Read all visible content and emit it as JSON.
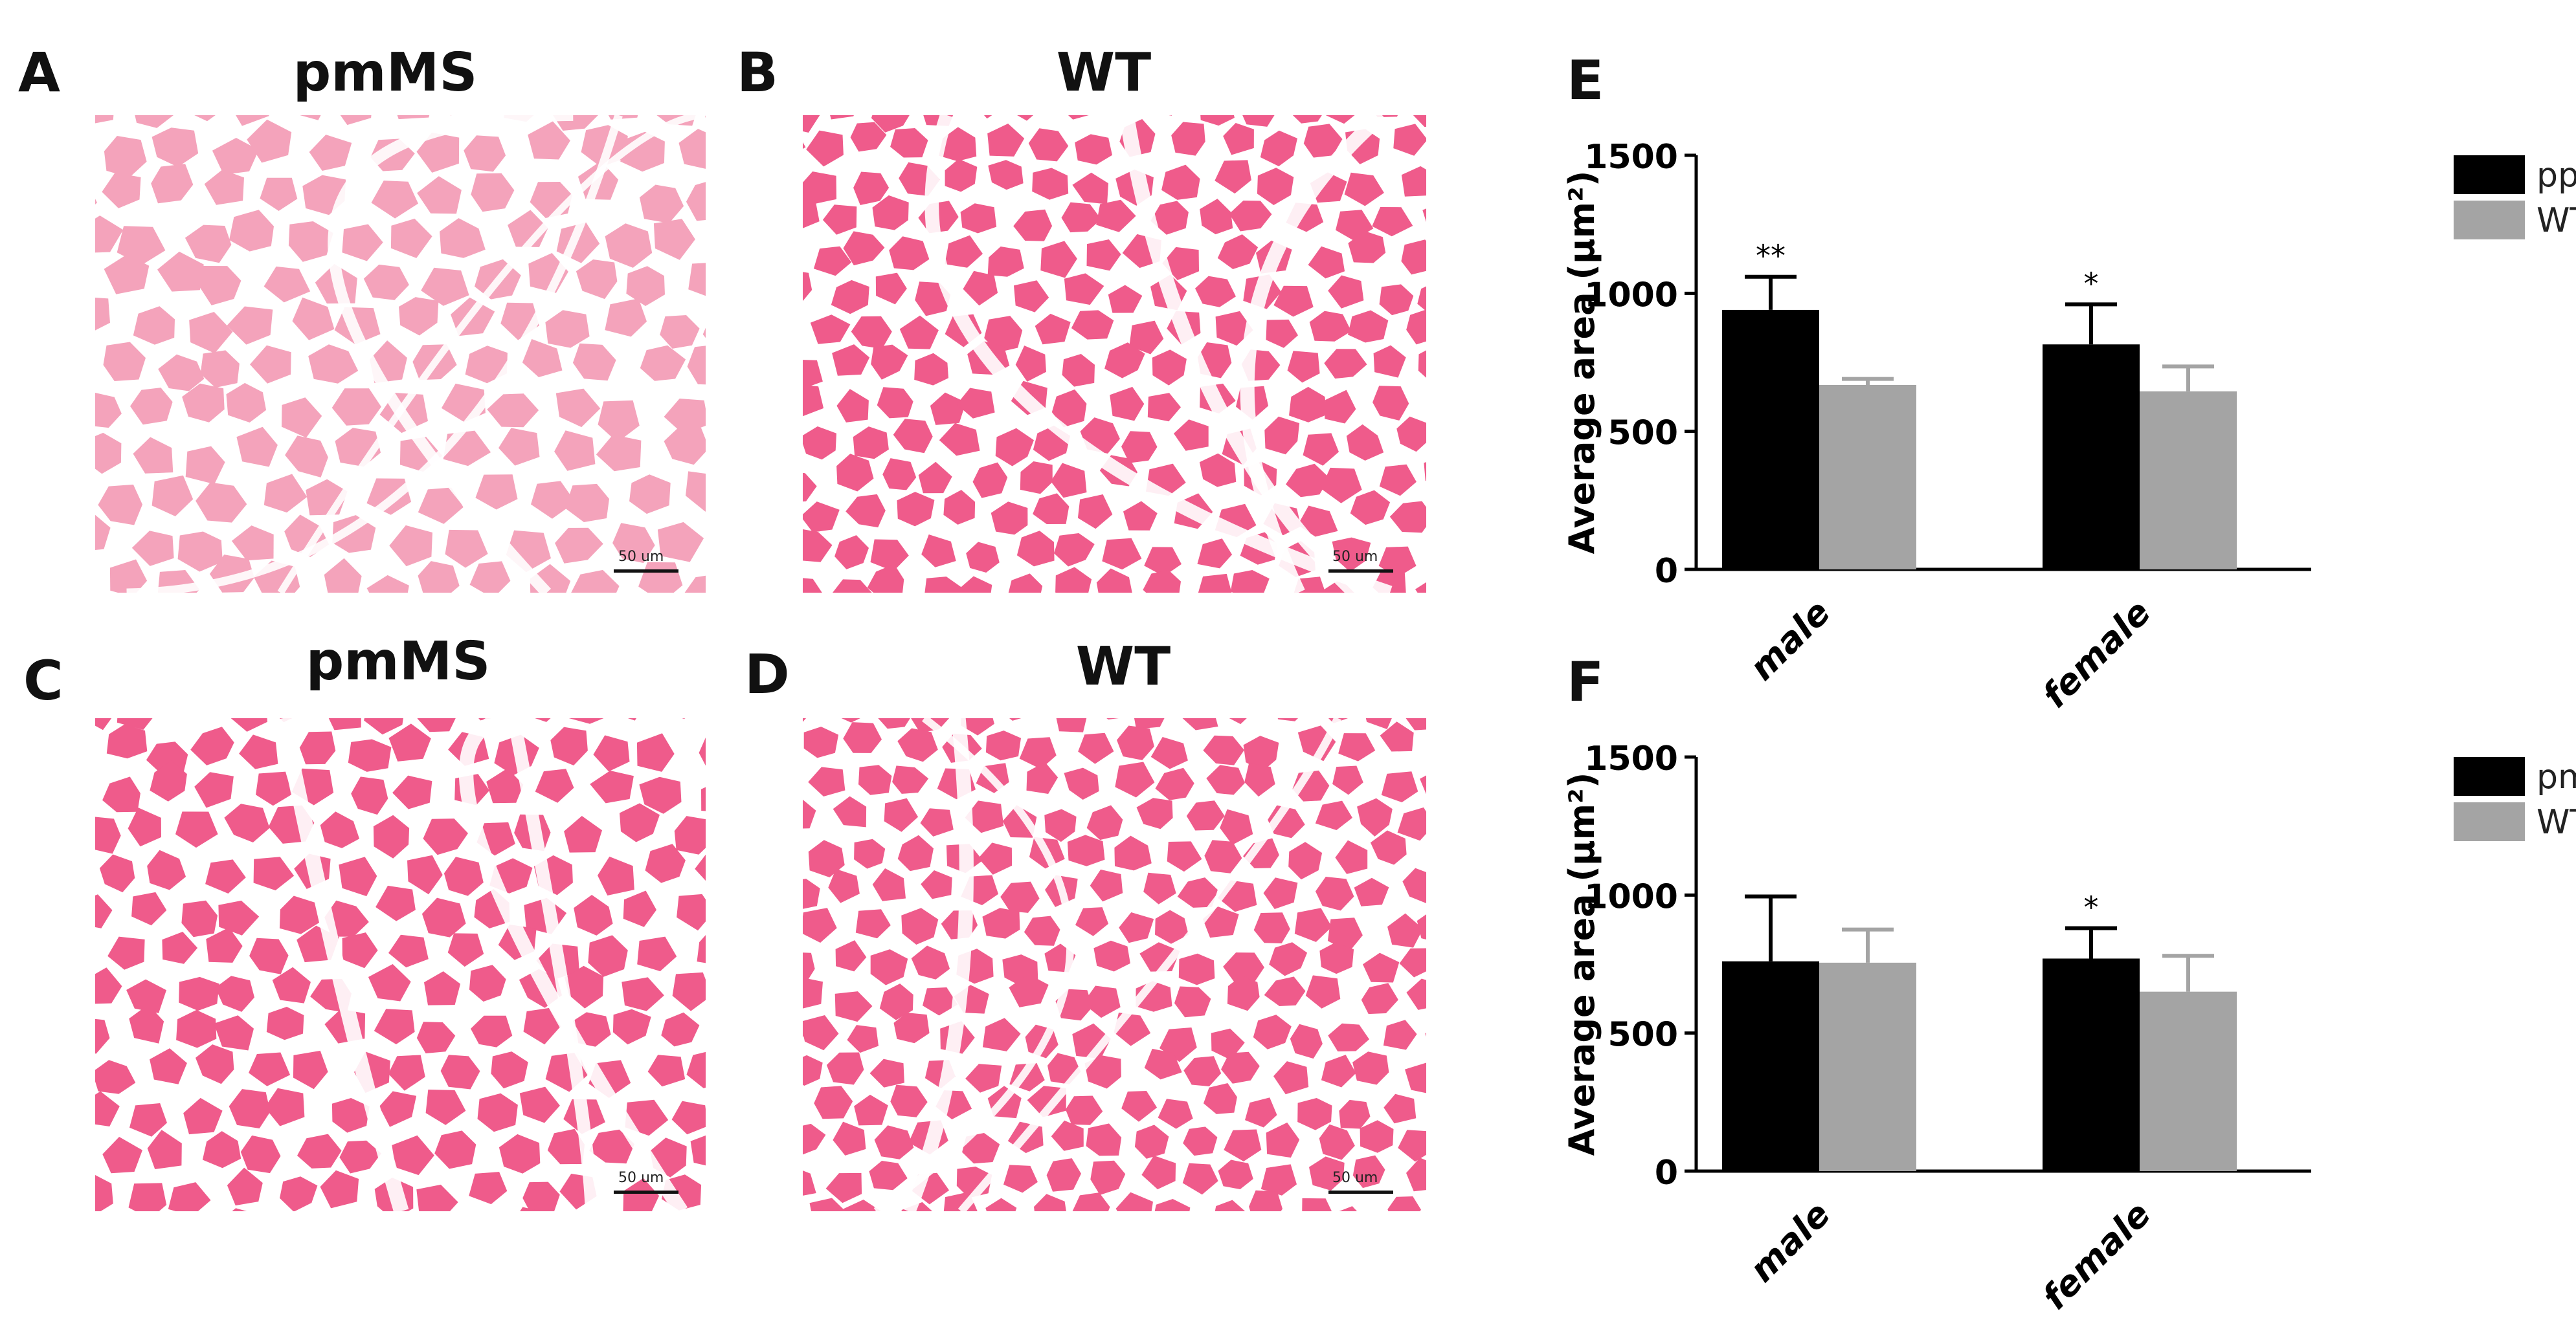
{
  "panels": {
    "A": {
      "letter": "A",
      "title": "pmMS",
      "scale_label": "50 um"
    },
    "B": {
      "letter": "B",
      "title": "WT",
      "scale_label": "50 um"
    },
    "C": {
      "letter": "C",
      "title": "pmMS",
      "scale_label": "50 um"
    },
    "D": {
      "letter": "D",
      "title": "WT",
      "scale_label": "50 um"
    },
    "E": {
      "letter": "E"
    },
    "F": {
      "letter": "F"
    }
  },
  "colors": {
    "tissue_pale": "#f4a3bb",
    "tissue_bright": "#ef5b8b",
    "membrane": "#ffffff",
    "series_dark": "#000000",
    "series_light": "#a4a4a4"
  },
  "chart_data": [
    {
      "type": "bar",
      "panel": "E",
      "categories": [
        "male",
        "female"
      ],
      "series": [
        {
          "name": "ppMS",
          "values": [
            940,
            815
          ],
          "errors": [
            120,
            145
          ],
          "color": "#000000"
        },
        {
          "name": "WT",
          "values": [
            668,
            645
          ],
          "errors": [
            22,
            90
          ],
          "color": "#a4a4a4"
        }
      ],
      "significance": [
        [
          "**",
          ""
        ],
        [
          "*",
          ""
        ]
      ],
      "ylabel": "Average area (μm²)",
      "ylim": [
        0,
        1500
      ],
      "yticks": [
        0,
        500,
        1000,
        1500
      ],
      "legend": "top-right",
      "grid": false
    },
    {
      "type": "bar",
      "panel": "F",
      "categories": [
        "male",
        "female"
      ],
      "series": [
        {
          "name": "pmMS",
          "values": [
            760,
            770
          ],
          "errors": [
            235,
            110
          ],
          "color": "#000000"
        },
        {
          "name": "WT",
          "values": [
            755,
            650
          ],
          "errors": [
            120,
            130
          ],
          "color": "#a4a4a4"
        }
      ],
      "significance": [
        [
          "",
          ""
        ],
        [
          "*",
          ""
        ]
      ],
      "ylabel": "Average area (μm²)",
      "ylim": [
        0,
        1500
      ],
      "yticks": [
        0,
        500,
        1000,
        1500
      ],
      "legend": "top-right",
      "grid": false
    }
  ]
}
